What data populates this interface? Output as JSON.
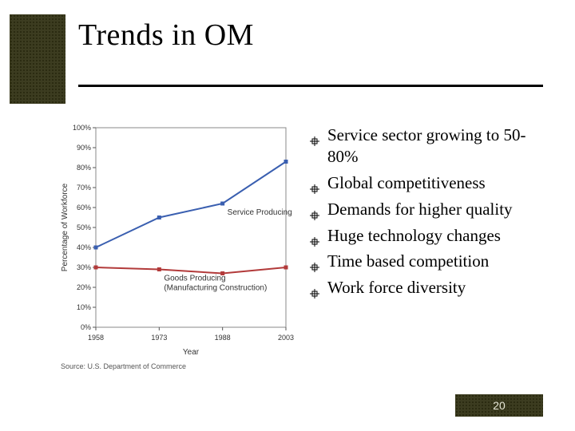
{
  "slide": {
    "title": "Trends in OM",
    "page_number": "20"
  },
  "accent": {
    "block_color": "#3c3c20",
    "dot_color": "#2a2a10"
  },
  "bullets": {
    "items": [
      "Service sector growing to 50-80%",
      "Global competitiveness",
      "Demands for higher quality",
      "Huge technology changes",
      "Time based competition",
      "Work force diversity"
    ],
    "bullet_marker": "target-icon",
    "text_color": "#000000",
    "fontsize": 21
  },
  "chart": {
    "type": "line",
    "title": null,
    "xlabel": "Year",
    "ylabel": "Percentage of Workforce",
    "xlabel_fontsize": 10,
    "ylabel_fontsize": 10,
    "tick_fontsize": 9,
    "background_color": "#ffffff",
    "plot_border_color": "#888888",
    "grid": false,
    "y_axis": {
      "ylim": [
        0,
        100
      ],
      "tick_step": 10,
      "tick_labels": [
        "0%",
        "10%",
        "20%",
        "30%",
        "40%",
        "50%",
        "60%",
        "70%",
        "80%",
        "90%",
        "100%"
      ]
    },
    "x_axis": {
      "categories": [
        "1958",
        "1973",
        "1988",
        "2003"
      ]
    },
    "series": [
      {
        "name": "Service Producing",
        "label_pos_index": 2,
        "color": "#3a5fb0",
        "line_width": 2,
        "marker": "square",
        "marker_size": 5,
        "values": [
          40,
          55,
          62,
          83
        ]
      },
      {
        "name": "Goods Producing\n(Manufacturing Construction)",
        "label_pos_index": 1,
        "color": "#b23a3a",
        "line_width": 2,
        "marker": "square",
        "marker_size": 5,
        "values": [
          30,
          29,
          27,
          30
        ]
      }
    ],
    "source": "Source: U.S. Department of Commerce"
  }
}
